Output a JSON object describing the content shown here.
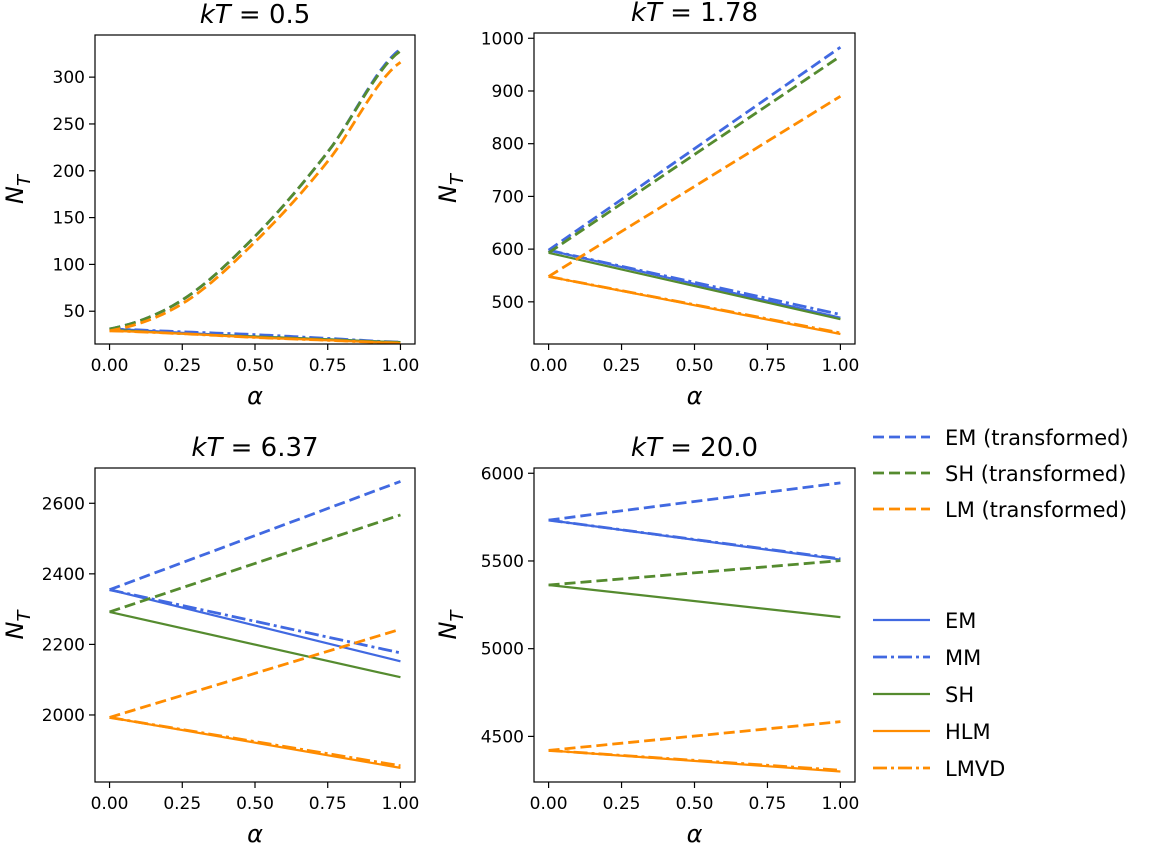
{
  "chart_data": [
    {
      "type": "line",
      "title": "kT = 0.5",
      "xlabel": "α",
      "ylabel": "N_T",
      "xlim": [
        -0.05,
        1.05
      ],
      "ylim": [
        15,
        345
      ],
      "xticks": [
        "0.00",
        "0.25",
        "0.50",
        "0.75",
        "1.00"
      ],
      "yticks": [
        50,
        100,
        150,
        200,
        250,
        300
      ],
      "x": [
        0,
        0.25,
        0.5,
        0.75,
        1.0
      ],
      "series": [
        {
          "name": "EM (transformed)",
          "color": "#4169E1",
          "style": "dashed",
          "values": [
            31,
            62,
            130,
            220,
            330
          ]
        },
        {
          "name": "SH (transformed)",
          "color": "#558B2F",
          "style": "dashed",
          "values": [
            31,
            62,
            130,
            220,
            328
          ]
        },
        {
          "name": "LM (transformed)",
          "color": "#FF8C00",
          "style": "dashed",
          "values": [
            29,
            58,
            124,
            210,
            316
          ]
        },
        {
          "name": "EM",
          "color": "#4169E1",
          "style": "solid",
          "values": [
            31,
            27,
            23,
            20,
            17
          ]
        },
        {
          "name": "MM",
          "color": "#4169E1",
          "style": "dashdot",
          "values": [
            31,
            28,
            25,
            21,
            17
          ]
        },
        {
          "name": "SH",
          "color": "#558B2F",
          "style": "solid",
          "values": [
            30,
            26,
            23,
            20,
            17
          ]
        },
        {
          "name": "HLM",
          "color": "#FF8C00",
          "style": "solid",
          "values": [
            29,
            26,
            22,
            19,
            16
          ]
        },
        {
          "name": "LMVD",
          "color": "#FF8C00",
          "style": "dashdot",
          "values": [
            29,
            26,
            22,
            19,
            16
          ]
        }
      ]
    },
    {
      "type": "line",
      "title": "kT = 1.78",
      "xlabel": "α",
      "ylabel": "N_T",
      "xlim": [
        -0.05,
        1.05
      ],
      "ylim": [
        420,
        1010
      ],
      "xticks": [
        "0.00",
        "0.25",
        "0.50",
        "0.75",
        "1.00"
      ],
      "yticks": [
        500,
        600,
        700,
        800,
        900,
        1000
      ],
      "x": [
        0,
        1.0
      ],
      "series": [
        {
          "name": "EM (transformed)",
          "color": "#4169E1",
          "style": "dashed",
          "values": [
            598,
            983
          ]
        },
        {
          "name": "SH (transformed)",
          "color": "#558B2F",
          "style": "dashed",
          "values": [
            593,
            966
          ]
        },
        {
          "name": "LM (transformed)",
          "color": "#FF8C00",
          "style": "dashed",
          "values": [
            548,
            890
          ]
        },
        {
          "name": "EM",
          "color": "#4169E1",
          "style": "solid",
          "values": [
            598,
            470
          ]
        },
        {
          "name": "MM",
          "color": "#4169E1",
          "style": "dashdot",
          "values": [
            598,
            476
          ]
        },
        {
          "name": "SH",
          "color": "#558B2F",
          "style": "solid",
          "values": [
            593,
            467
          ]
        },
        {
          "name": "HLM",
          "color": "#FF8C00",
          "style": "solid",
          "values": [
            548,
            439
          ]
        },
        {
          "name": "LMVD",
          "color": "#FF8C00",
          "style": "dashdot",
          "values": [
            548,
            441
          ]
        }
      ]
    },
    {
      "type": "line",
      "title": "kT = 6.37",
      "xlabel": "α",
      "ylabel": "N_T",
      "xlim": [
        -0.05,
        1.05
      ],
      "ylim": [
        1810,
        2700
      ],
      "xticks": [
        "0.00",
        "0.25",
        "0.50",
        "0.75",
        "1.00"
      ],
      "yticks": [
        2000,
        2200,
        2400,
        2600
      ],
      "x": [
        0,
        1.0
      ],
      "series": [
        {
          "name": "EM (transformed)",
          "color": "#4169E1",
          "style": "dashed",
          "values": [
            2355,
            2662
          ]
        },
        {
          "name": "SH (transformed)",
          "color": "#558B2F",
          "style": "dashed",
          "values": [
            2292,
            2567
          ]
        },
        {
          "name": "LM (transformed)",
          "color": "#FF8C00",
          "style": "dashed",
          "values": [
            1993,
            2243
          ]
        },
        {
          "name": "EM",
          "color": "#4169E1",
          "style": "solid",
          "values": [
            2355,
            2152
          ]
        },
        {
          "name": "MM",
          "color": "#4169E1",
          "style": "dashdot",
          "values": [
            2355,
            2176
          ]
        },
        {
          "name": "SH",
          "color": "#558B2F",
          "style": "solid",
          "values": [
            2292,
            2107
          ]
        },
        {
          "name": "HLM",
          "color": "#FF8C00",
          "style": "solid",
          "values": [
            1993,
            1850
          ]
        },
        {
          "name": "LMVD",
          "color": "#FF8C00",
          "style": "dashdot",
          "values": [
            1993,
            1856
          ]
        }
      ]
    },
    {
      "type": "line",
      "title": "kT = 20.0",
      "xlabel": "α",
      "ylabel": "N_T",
      "xlim": [
        -0.05,
        1.05
      ],
      "ylim": [
        4240,
        6030
      ],
      "xticks": [
        "0.00",
        "0.25",
        "0.50",
        "0.75",
        "1.00"
      ],
      "yticks": [
        4500,
        5000,
        5500,
        6000
      ],
      "x": [
        0,
        1.0
      ],
      "series": [
        {
          "name": "EM (transformed)",
          "color": "#4169E1",
          "style": "dashed",
          "values": [
            5733,
            5945
          ]
        },
        {
          "name": "SH (transformed)",
          "color": "#558B2F",
          "style": "dashed",
          "values": [
            5363,
            5502
          ]
        },
        {
          "name": "LM (transformed)",
          "color": "#FF8C00",
          "style": "dashed",
          "values": [
            4420,
            4584
          ]
        },
        {
          "name": "EM",
          "color": "#4169E1",
          "style": "solid",
          "values": [
            5733,
            5508
          ]
        },
        {
          "name": "MM",
          "color": "#4169E1",
          "style": "dashdot",
          "values": [
            5733,
            5512
          ]
        },
        {
          "name": "SH",
          "color": "#558B2F",
          "style": "solid",
          "values": [
            5363,
            5180
          ]
        },
        {
          "name": "HLM",
          "color": "#FF8C00",
          "style": "solid",
          "values": [
            4420,
            4300
          ]
        },
        {
          "name": "LMVD",
          "color": "#FF8C00",
          "style": "dashdot",
          "values": [
            4420,
            4307
          ]
        }
      ]
    }
  ],
  "legend": {
    "transformed": [
      {
        "label": "EM (transformed)",
        "color": "#4169E1",
        "style": "dashed"
      },
      {
        "label": "SH (transformed)",
        "color": "#558B2F",
        "style": "dashed"
      },
      {
        "label": "LM (transformed)",
        "color": "#FF8C00",
        "style": "dashed"
      }
    ],
    "models": [
      {
        "label": "EM",
        "color": "#4169E1",
        "style": "solid"
      },
      {
        "label": "MM",
        "color": "#4169E1",
        "style": "dashdot"
      },
      {
        "label": "SH",
        "color": "#558B2F",
        "style": "solid"
      },
      {
        "label": "HLM",
        "color": "#FF8C00",
        "style": "solid"
      },
      {
        "label": "LMVD",
        "color": "#FF8C00",
        "style": "dashdot"
      }
    ]
  }
}
